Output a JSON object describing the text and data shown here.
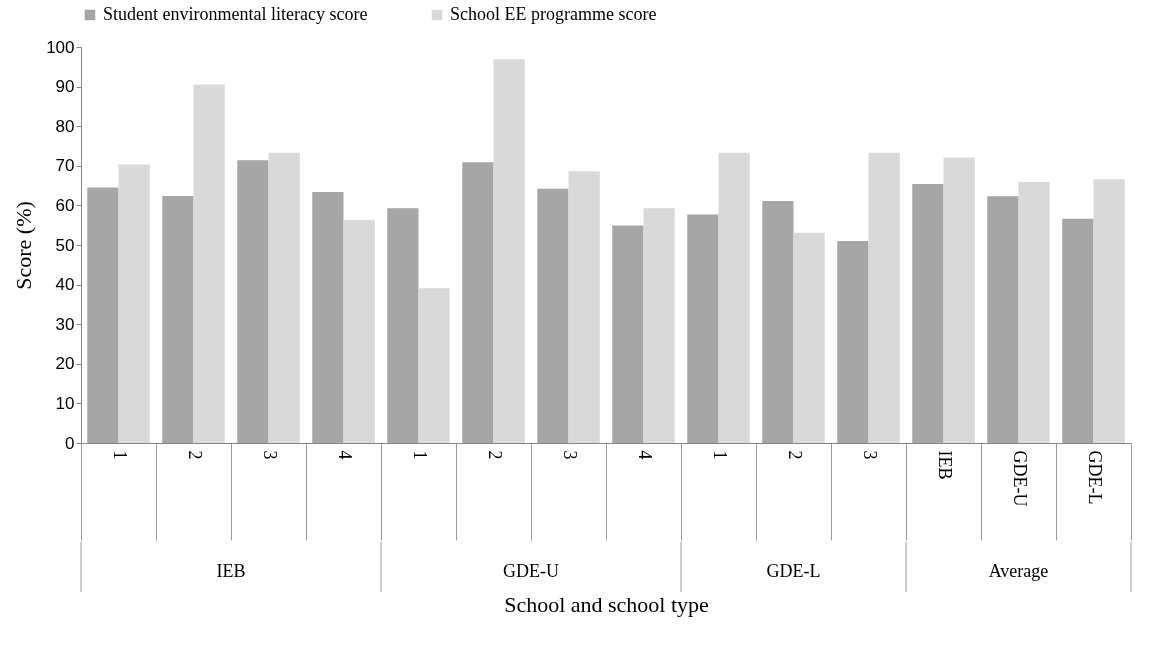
{
  "chart_data": {
    "type": "bar",
    "xlabel": "School and school type",
    "ylabel": "Score (%)",
    "categories": [
      "1",
      "2",
      "3",
      "4",
      "1",
      "2",
      "3",
      "4",
      "1",
      "2",
      "3",
      "IEB",
      "GDE-U",
      "GDE-L"
    ],
    "series": [
      {
        "name": "Student environmental literacy score",
        "color": "#a6a6a6",
        "values": [
          64.5,
          62.4,
          71.4,
          63.4,
          59.3,
          70.9,
          64.2,
          54.9,
          57.7,
          61.1,
          51.0,
          65.4,
          62.3,
          56.6
        ]
      },
      {
        "name": "School EE programme score",
        "color": "#d9d9d9",
        "values": [
          70.3,
          90.5,
          73.3,
          56.3,
          39.1,
          96.9,
          68.6,
          59.3,
          73.3,
          53.1,
          73.3,
          72.1,
          65.9,
          66.6
        ]
      }
    ],
    "annotations": [
      "IEB",
      "GDE-U",
      "GDE-L",
      "Average"
    ],
    "ylim": [
      0,
      100
    ],
    "yticks": [
      0,
      10,
      20,
      30,
      40,
      50,
      60,
      70,
      80,
      90,
      100
    ],
    "legend": "top",
    "grid": false
  }
}
